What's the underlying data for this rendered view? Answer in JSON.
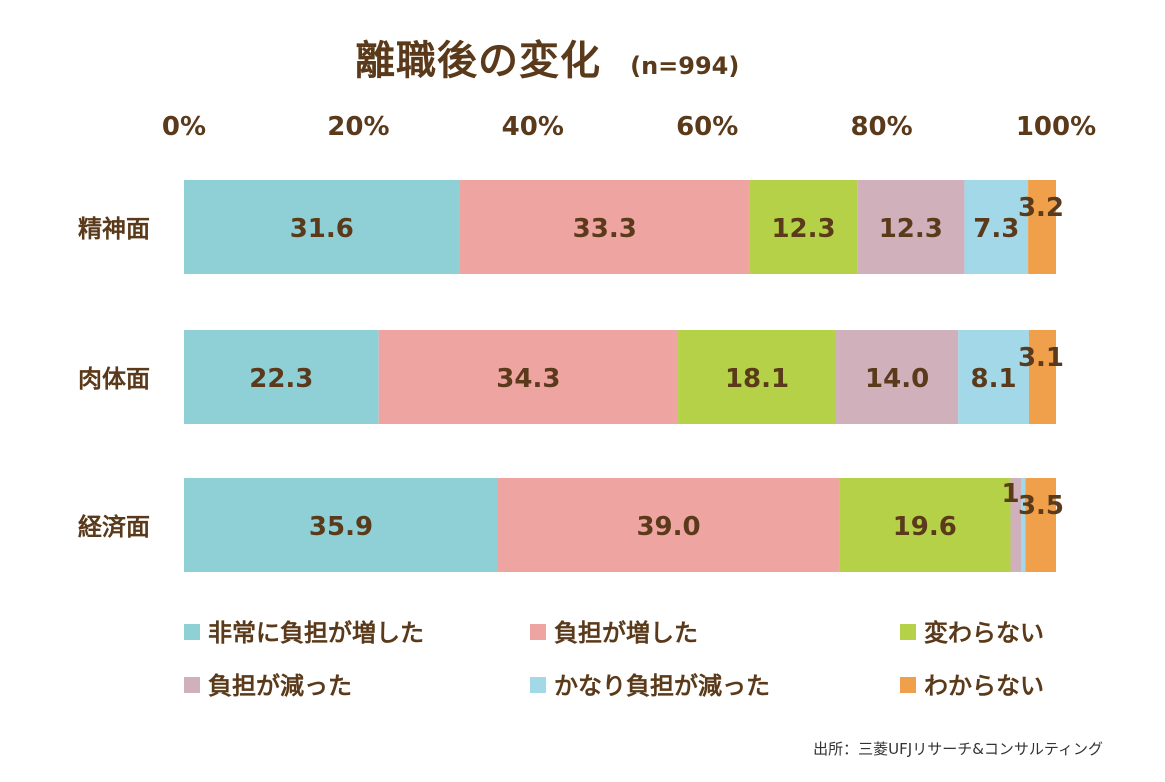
{
  "title": "離職後の変化",
  "subtitle": "(n=994)",
  "source": "出所：三菱UFJリサーチ&コンサルティング",
  "chart_data": {
    "type": "bar",
    "orientation": "horizontal",
    "stacked": true,
    "categories": [
      "精神面",
      "肉体面",
      "経済面"
    ],
    "xlim": [
      0,
      100
    ],
    "x_ticks": [
      "0%",
      "20%",
      "40%",
      "60%",
      "80%",
      "100%"
    ],
    "grid": false,
    "legend_placement": "bottom",
    "series": [
      {
        "name": "非常に負担が増した",
        "color": "#8fcfd6",
        "values": [
          31.6,
          22.3,
          35.9
        ],
        "labels": [
          "31.6",
          "22.3",
          "35.9"
        ]
      },
      {
        "name": "負担が増した",
        "color": "#eea4a0",
        "values": [
          33.3,
          34.3,
          39.0
        ],
        "labels": [
          "33.3",
          "34.3",
          "39.0"
        ]
      },
      {
        "name": "変わらない",
        "color": "#b5d147",
        "values": [
          12.3,
          18.1,
          19.6
        ],
        "labels": [
          "12.3",
          "18.1",
          "19.6"
        ]
      },
      {
        "name": "負担が減った",
        "color": "#cfb0bb",
        "values": [
          12.3,
          14.0,
          1.2
        ],
        "labels": [
          "12.3",
          "14.0",
          "1.2"
        ]
      },
      {
        "name": "かなり負担が減った",
        "color": "#a2d8e8",
        "values": [
          7.3,
          8.1,
          0.5
        ],
        "labels": [
          "7.3",
          "8.1",
          ""
        ]
      },
      {
        "name": "わからない",
        "color": "#f0a04a",
        "values": [
          3.2,
          3.1,
          3.5
        ],
        "labels": [
          "3.2",
          "3.1",
          "3.5"
        ]
      }
    ]
  }
}
